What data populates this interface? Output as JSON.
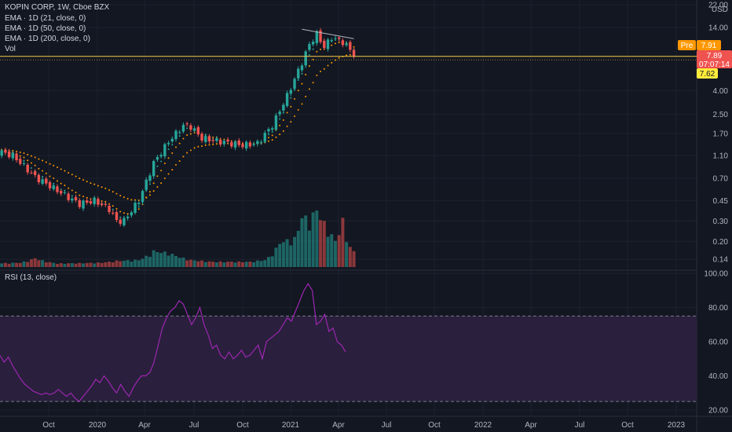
{
  "header": {
    "title": "KOPIN CORP, 1W, Cboe BZX",
    "indicators": [
      "EMA · 1D (21, close, 0)",
      "EMA · 1D (50, close, 0)",
      "EMA · 1D (200, close, 0)",
      "Vol"
    ],
    "rsi_label": "RSI (13, close)",
    "currency": "USD"
  },
  "tags": {
    "pre_label": "Pre",
    "pre_value": "7.91",
    "last_value": "7.89",
    "countdown": "07:07:14",
    "ema_value": "7.62"
  },
  "colors": {
    "background": "#131722",
    "up": "#26a69a",
    "down": "#ef5350",
    "ema_fast": "#26a69a",
    "ema_slow": "#ff9800",
    "rsi_line": "#9c27b0",
    "rsi_band": "#2a1f3d",
    "pre_tag": "#ff9800",
    "last_tag": "#ef5350",
    "ema_tag": "#ffeb3b",
    "price_line": "#f7c948"
  },
  "chart_data": [
    {
      "type": "candlestick",
      "title": "KOPIN CORP, 1W, Cboe BZX",
      "scale": "log",
      "ylim": [
        0.12,
        22
      ],
      "y_ticks": [
        "22.00",
        "14.00",
        "7.89",
        "4.00",
        "2.50",
        "1.70",
        "1.10",
        "0.70",
        "0.45",
        "0.30",
        "0.20",
        "0.14"
      ],
      "x_ticks": [
        "Oct",
        "2020",
        "Apr",
        "Jul",
        "Oct",
        "2021",
        "Apr",
        "Jul",
        "Oct",
        "2022",
        "Apr",
        "Jul",
        "Oct",
        "2023"
      ],
      "price_start": 1.25,
      "weekly_close_path": [
        [
          0,
          1.25
        ],
        [
          6,
          1.1
        ],
        [
          12,
          0.72
        ],
        [
          18,
          0.55
        ],
        [
          24,
          0.42
        ],
        [
          28,
          0.45
        ],
        [
          32,
          0.38
        ],
        [
          34,
          0.3
        ],
        [
          36,
          0.3
        ],
        [
          40,
          0.45
        ],
        [
          44,
          0.95
        ],
        [
          48,
          1.45
        ],
        [
          52,
          2.0
        ],
        [
          54,
          1.95
        ],
        [
          57,
          1.55
        ],
        [
          62,
          1.45
        ],
        [
          68,
          1.35
        ],
        [
          72,
          1.4
        ],
        [
          76,
          2.0
        ],
        [
          80,
          3.6
        ],
        [
          84,
          7.0
        ],
        [
          86,
          10.0
        ],
        [
          88,
          12.3
        ],
        [
          90,
          9.5
        ],
        [
          92,
          11.5
        ],
        [
          95,
          10.5
        ],
        [
          97,
          9.0
        ],
        [
          98,
          8.3
        ]
      ],
      "last_close": 7.89,
      "ema_21_last": 7.62,
      "series": [
        {
          "name": "EMA · 1D (21, close, 0)",
          "style": "dots"
        },
        {
          "name": "EMA · 1D (50, close, 0)",
          "style": "dots"
        },
        {
          "name": "EMA · 1D (200, close, 0)",
          "style": "dots"
        }
      ]
    },
    {
      "type": "bar",
      "title": "Vol",
      "weekly_volume_path": [
        [
          0,
          0.2
        ],
        [
          8,
          0.25
        ],
        [
          12,
          0.5
        ],
        [
          18,
          0.2
        ],
        [
          30,
          0.25
        ],
        [
          34,
          0.35
        ],
        [
          40,
          0.4
        ],
        [
          44,
          0.9
        ],
        [
          48,
          0.8
        ],
        [
          54,
          0.4
        ],
        [
          60,
          0.3
        ],
        [
          70,
          0.3
        ],
        [
          74,
          0.4
        ],
        [
          78,
          1.4
        ],
        [
          82,
          1.6
        ],
        [
          84,
          2.9
        ],
        [
          86,
          2.6
        ],
        [
          88,
          3.3
        ],
        [
          91,
          2.1
        ],
        [
          93,
          1.5
        ],
        [
          95,
          2.6
        ],
        [
          97,
          1.1
        ],
        [
          98,
          0.9
        ]
      ]
    },
    {
      "type": "line",
      "title": "RSI (13, close)",
      "ylim": [
        20,
        100
      ],
      "y_ticks": [
        "100.00",
        "80.00",
        "60.00",
        "40.00",
        "20.00"
      ],
      "band": [
        25,
        75
      ],
      "values": [
        52,
        48,
        51,
        46,
        42,
        38,
        35,
        33,
        31,
        30,
        29,
        30,
        29,
        30,
        32,
        30,
        28,
        30,
        27,
        25,
        28,
        31,
        34,
        38,
        36,
        40,
        37,
        33,
        30,
        35,
        31,
        28,
        33,
        37,
        40,
        40,
        42,
        48,
        58,
        68,
        74,
        78,
        80,
        84,
        82,
        76,
        70,
        74,
        80,
        70,
        64,
        56,
        58,
        52,
        50,
        54,
        50,
        52,
        55,
        51,
        52,
        55,
        58,
        50,
        60,
        62,
        64,
        66,
        70,
        74,
        72,
        78,
        84,
        90,
        94,
        90,
        70,
        72,
        76,
        66,
        68,
        60,
        58,
        54
      ]
    }
  ]
}
